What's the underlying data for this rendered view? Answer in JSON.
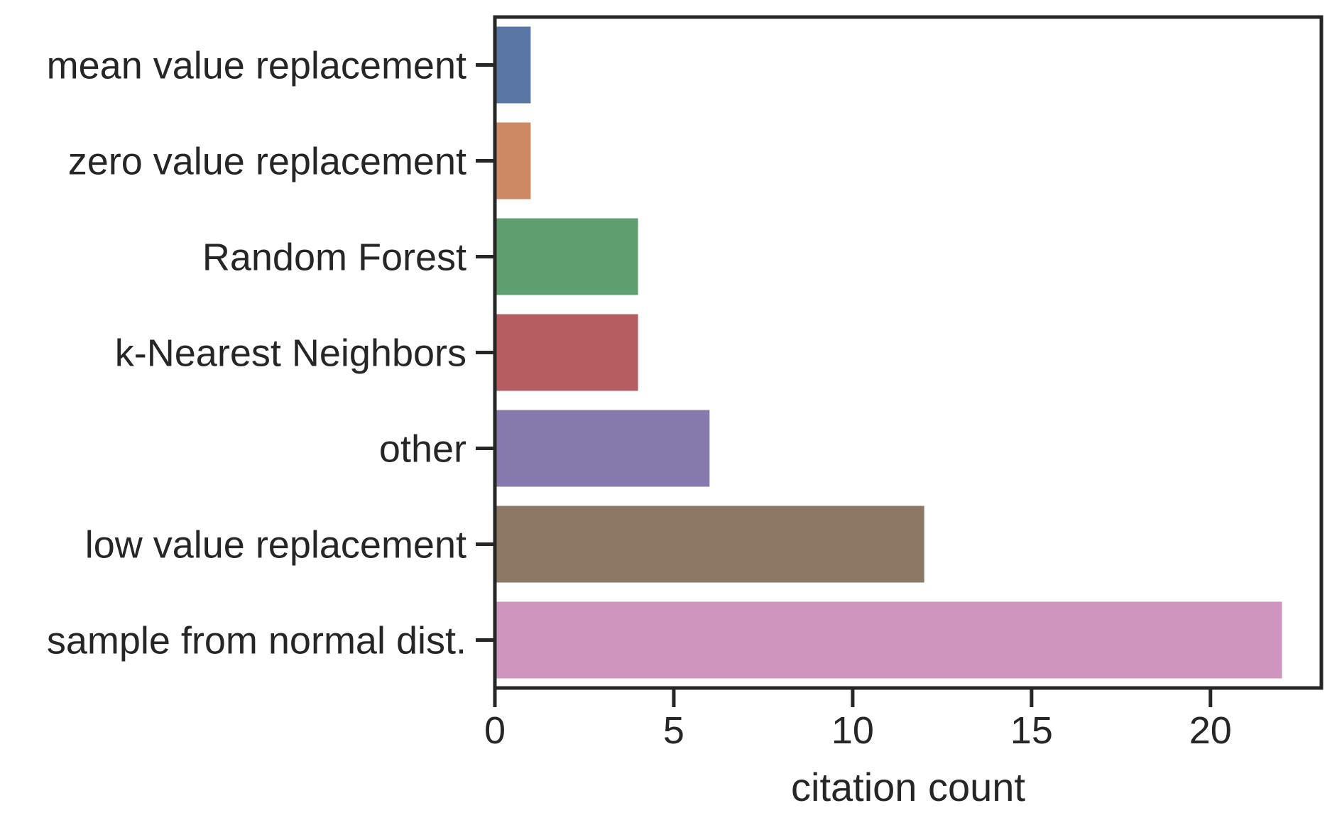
{
  "chart_data": {
    "type": "bar",
    "orientation": "horizontal",
    "categories": [
      "mean value replacement",
      "zero value replacement",
      "Random Forest",
      "k-Nearest Neighbors",
      "other",
      "low value replacement",
      "sample from normal dist."
    ],
    "values": [
      1,
      1,
      4,
      4,
      6,
      12,
      22
    ],
    "colors": [
      "#5875a4",
      "#cc8963",
      "#5f9e6e",
      "#b55d60",
      "#857aab",
      "#8d7866",
      "#d095bf"
    ],
    "xlabel": "citation count",
    "ylabel": "",
    "xlim": [
      0,
      23.1
    ],
    "xticks": [
      0,
      5,
      10,
      15,
      20
    ],
    "grid": false,
    "legend": "none"
  }
}
